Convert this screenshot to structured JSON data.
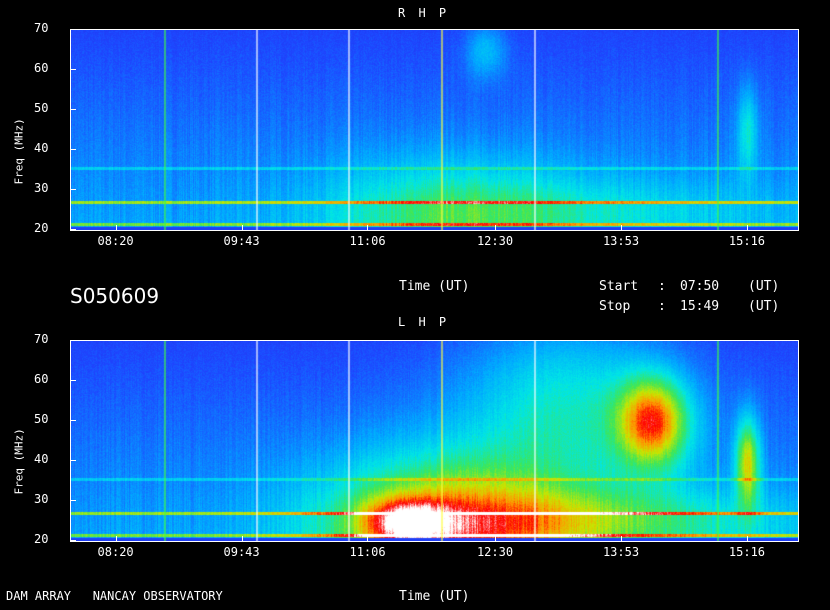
{
  "station": "S050609",
  "observatory_label": "DAM ARRAY   NANCAY OBSERVATORY",
  "time_label": "Time (UT)",
  "start": {
    "label": "Start",
    "sep": ":",
    "value": "07:50",
    "unit": "(UT)"
  },
  "stop": {
    "label": "Stop",
    "sep": ":",
    "value": "15:49",
    "unit": "(UT)"
  },
  "colors": {
    "background": "#000000",
    "base": "#1a3cff",
    "high": "#ff0000"
  },
  "chart_data": [
    {
      "type": "heatmap",
      "title": "R H P",
      "ylabel": "Freq (MHz)",
      "xlabel": "Time (UT)",
      "xlim": [
        "07:50",
        "15:49"
      ],
      "ylim": [
        20,
        70
      ],
      "x_ticks": [
        "08:20",
        "09:43",
        "11:06",
        "12:30",
        "13:53",
        "15:16"
      ],
      "y_ticks": [
        20,
        30,
        40,
        50,
        60,
        70
      ],
      "activity": "weak; moderate low-frequency emission 10:30-12:00, faint bursts near 12:20 and 15:20"
    },
    {
      "type": "heatmap",
      "title": "L H P",
      "ylabel": "Freq (MHz)",
      "xlabel": "Time (UT)",
      "xlim": [
        "07:50",
        "15:49"
      ],
      "ylim": [
        20,
        70
      ],
      "x_ticks": [
        "08:20",
        "09:43",
        "11:06",
        "12:30",
        "13:53",
        "15:16"
      ],
      "y_ticks": [
        20,
        30,
        40,
        50,
        60,
        70
      ],
      "activity": "strong emission 11:00-12:10 at 20-35 MHz; intense burst 14:10-14:40 at 38-62 MHz; burst near 15:30 at 30-55 MHz"
    }
  ]
}
